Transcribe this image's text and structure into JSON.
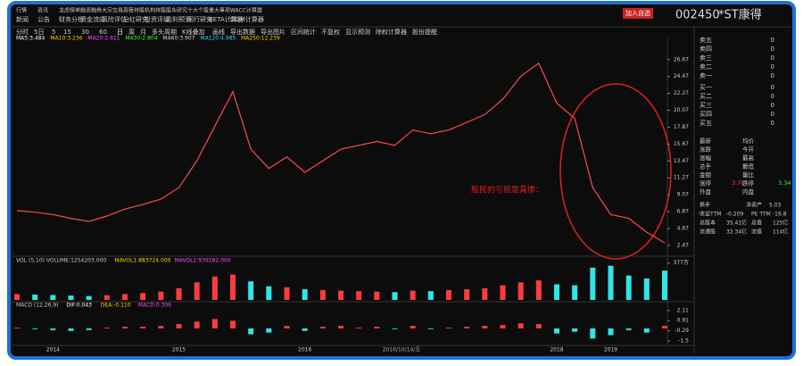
{
  "header": {
    "button": "加入自选",
    "code": "002450",
    "name": "*ST康得"
  },
  "menu_row1": [
    "行情",
    "资讯",
    "龙虎榜单",
    "融资融券",
    "大宗交易",
    "高管持股",
    "机构持股",
    "股东研究",
    "十大个股",
    "重大事项",
    "WACC计算器"
  ],
  "menu_row2": [
    "新闻",
    "公告",
    "财务分析",
    "资金流向",
    "风险评估",
    "分红研究",
    "投资评级",
    "盈利预测",
    "同行研究",
    "BETA计算器",
    "DDM计算器"
  ],
  "toolbar": [
    "分时",
    "5日",
    "5",
    "15",
    "30",
    "60",
    "日",
    "周",
    "月",
    "多头周期",
    "K线叠加",
    "画线",
    "导出数据",
    "导出图片",
    "区间统计",
    "不复权",
    "显示预测",
    "除权计算器",
    "股份提醒"
  ],
  "chart_data": [
    {
      "type": "line",
      "legend": [
        {
          "label": "MA5:3.484",
          "color": "#ffffff"
        },
        {
          "label": "MA10:3.236",
          "color": "#ffd700"
        },
        {
          "label": "MA20:2.611",
          "color": "#ff4fff"
        },
        {
          "label": "MA30:2.804",
          "color": "#3cff3c"
        },
        {
          "label": "MA60:3.907",
          "color": "#dddddd"
        },
        {
          "label": "MA120:4.985",
          "color": "#3cd7ff"
        },
        {
          "label": "MA250:12.239",
          "color": "#ffd700"
        }
      ],
      "categories": [
        null,
        null,
        "2014",
        null,
        null,
        null,
        null,
        null,
        null,
        "2015",
        null,
        null,
        null,
        null,
        null,
        null,
        "2016",
        null,
        null,
        null,
        null,
        null,
        null,
        null,
        null,
        null,
        null,
        null,
        null,
        null,
        "2018",
        null,
        null,
        "2019",
        null,
        null,
        null
      ],
      "values": [
        7.0,
        6.8,
        6.5,
        6.0,
        5.6,
        6.3,
        7.2,
        7.8,
        8.5,
        10.0,
        13.5,
        18.0,
        22.5,
        15.0,
        12.5,
        14.0,
        12.0,
        13.5,
        15.0,
        15.5,
        16.0,
        15.5,
        17.5,
        17.0,
        17.5,
        18.5,
        19.5,
        21.5,
        24.5,
        26.2,
        21.0,
        19.0,
        10.0,
        6.5,
        6.0,
        4.2,
        2.8
      ],
      "color": "#ff4a4a",
      "ylim": [
        1.3,
        29.2
      ],
      "yticks": [
        26.67,
        24.47,
        22.27,
        20.07,
        17.87,
        15.67,
        13.47,
        11.27,
        9.07,
        6.87,
        4.67,
        2.47
      ],
      "annotation": "股民的亏损是真惨：",
      "cursor_label": "2016/10/14/五"
    },
    {
      "type": "bar",
      "title": "VOL (5,10) VOLUME:1254203.000",
      "legend": [
        {
          "label": "MAVOL1:883724.000",
          "color": "#ffd700"
        },
        {
          "label": "MAVOL2:939282.000",
          "color": "#ff4fff"
        }
      ],
      "values": [
        60,
        55,
        50,
        45,
        40,
        48,
        60,
        70,
        85,
        120,
        180,
        240,
        260,
        190,
        140,
        130,
        110,
        100,
        95,
        90,
        85,
        80,
        95,
        90,
        100,
        110,
        120,
        150,
        180,
        200,
        160,
        150,
        330,
        350,
        250,
        220,
        300
      ],
      "up_color": "#ff3c3c",
      "down_color": "#2ee6e6",
      "ylim": [
        0,
        420
      ],
      "yticks": [
        {
          "value": 377,
          "label": "377万"
        }
      ]
    },
    {
      "type": "bar",
      "title": "MACD (12,26,9)",
      "legend": [
        {
          "label": "DIF:0.043",
          "color": "#ffffff"
        },
        {
          "label": "DEA:-0.110",
          "color": "#ffd700"
        },
        {
          "label": "MACD:0.306",
          "color": "#ff4fff"
        }
      ],
      "values": [
        0.1,
        -0.1,
        -0.2,
        -0.3,
        -0.2,
        0.1,
        0.2,
        0.2,
        0.3,
        0.5,
        0.8,
        1.1,
        0.9,
        -0.7,
        -0.5,
        0.3,
        -0.3,
        0.2,
        0.3,
        0.1,
        0.2,
        -0.1,
        0.3,
        -0.1,
        0.1,
        0.2,
        0.3,
        0.4,
        0.6,
        0.5,
        -0.6,
        -0.4,
        -1.2,
        -0.8,
        -0.2,
        -0.5,
        0.3
      ],
      "up_color": "#ff3c3c",
      "down_color": "#2ee6e6",
      "ylim": [
        -1.91,
        2.93
      ],
      "yticks": [
        2.11,
        0.91,
        -0.29,
        -1.5
      ]
    }
  ],
  "order_book": {
    "sell": [
      {
        "label": "卖五",
        "volume": "0"
      },
      {
        "label": "卖四",
        "volume": "0"
      },
      {
        "label": "卖三",
        "volume": "0"
      },
      {
        "label": "卖二",
        "volume": "0"
      },
      {
        "label": "卖一",
        "volume": "0"
      }
    ],
    "buy": [
      {
        "label": "买一",
        "volume": "0"
      },
      {
        "label": "买二",
        "volume": "0"
      },
      {
        "label": "买三",
        "volume": "0"
      },
      {
        "label": "买四",
        "volume": "0"
      },
      {
        "label": "买五",
        "volume": "0"
      }
    ]
  },
  "stats": [
    [
      "最新",
      "均价"
    ],
    [
      "涨跌",
      "今开"
    ],
    [
      "涨幅",
      "最高"
    ],
    [
      "总手",
      "最低"
    ],
    [
      "金额",
      "量比"
    ],
    [
      "涨停",
      "跌停"
    ],
    [
      "外盘",
      "内盘"
    ]
  ],
  "limit_up": "3.70",
  "limit_down": "3.34",
  "info": [
    [
      "换手",
      "净资产",
      "5.03"
    ],
    [
      "收益TTM",
      "-0.209",
      "PE TTM",
      "-16.8"
    ],
    [
      "总股本",
      "35.41亿",
      "总值",
      "125亿"
    ],
    [
      "流通股",
      "32.34亿",
      "流值",
      "114亿"
    ]
  ]
}
